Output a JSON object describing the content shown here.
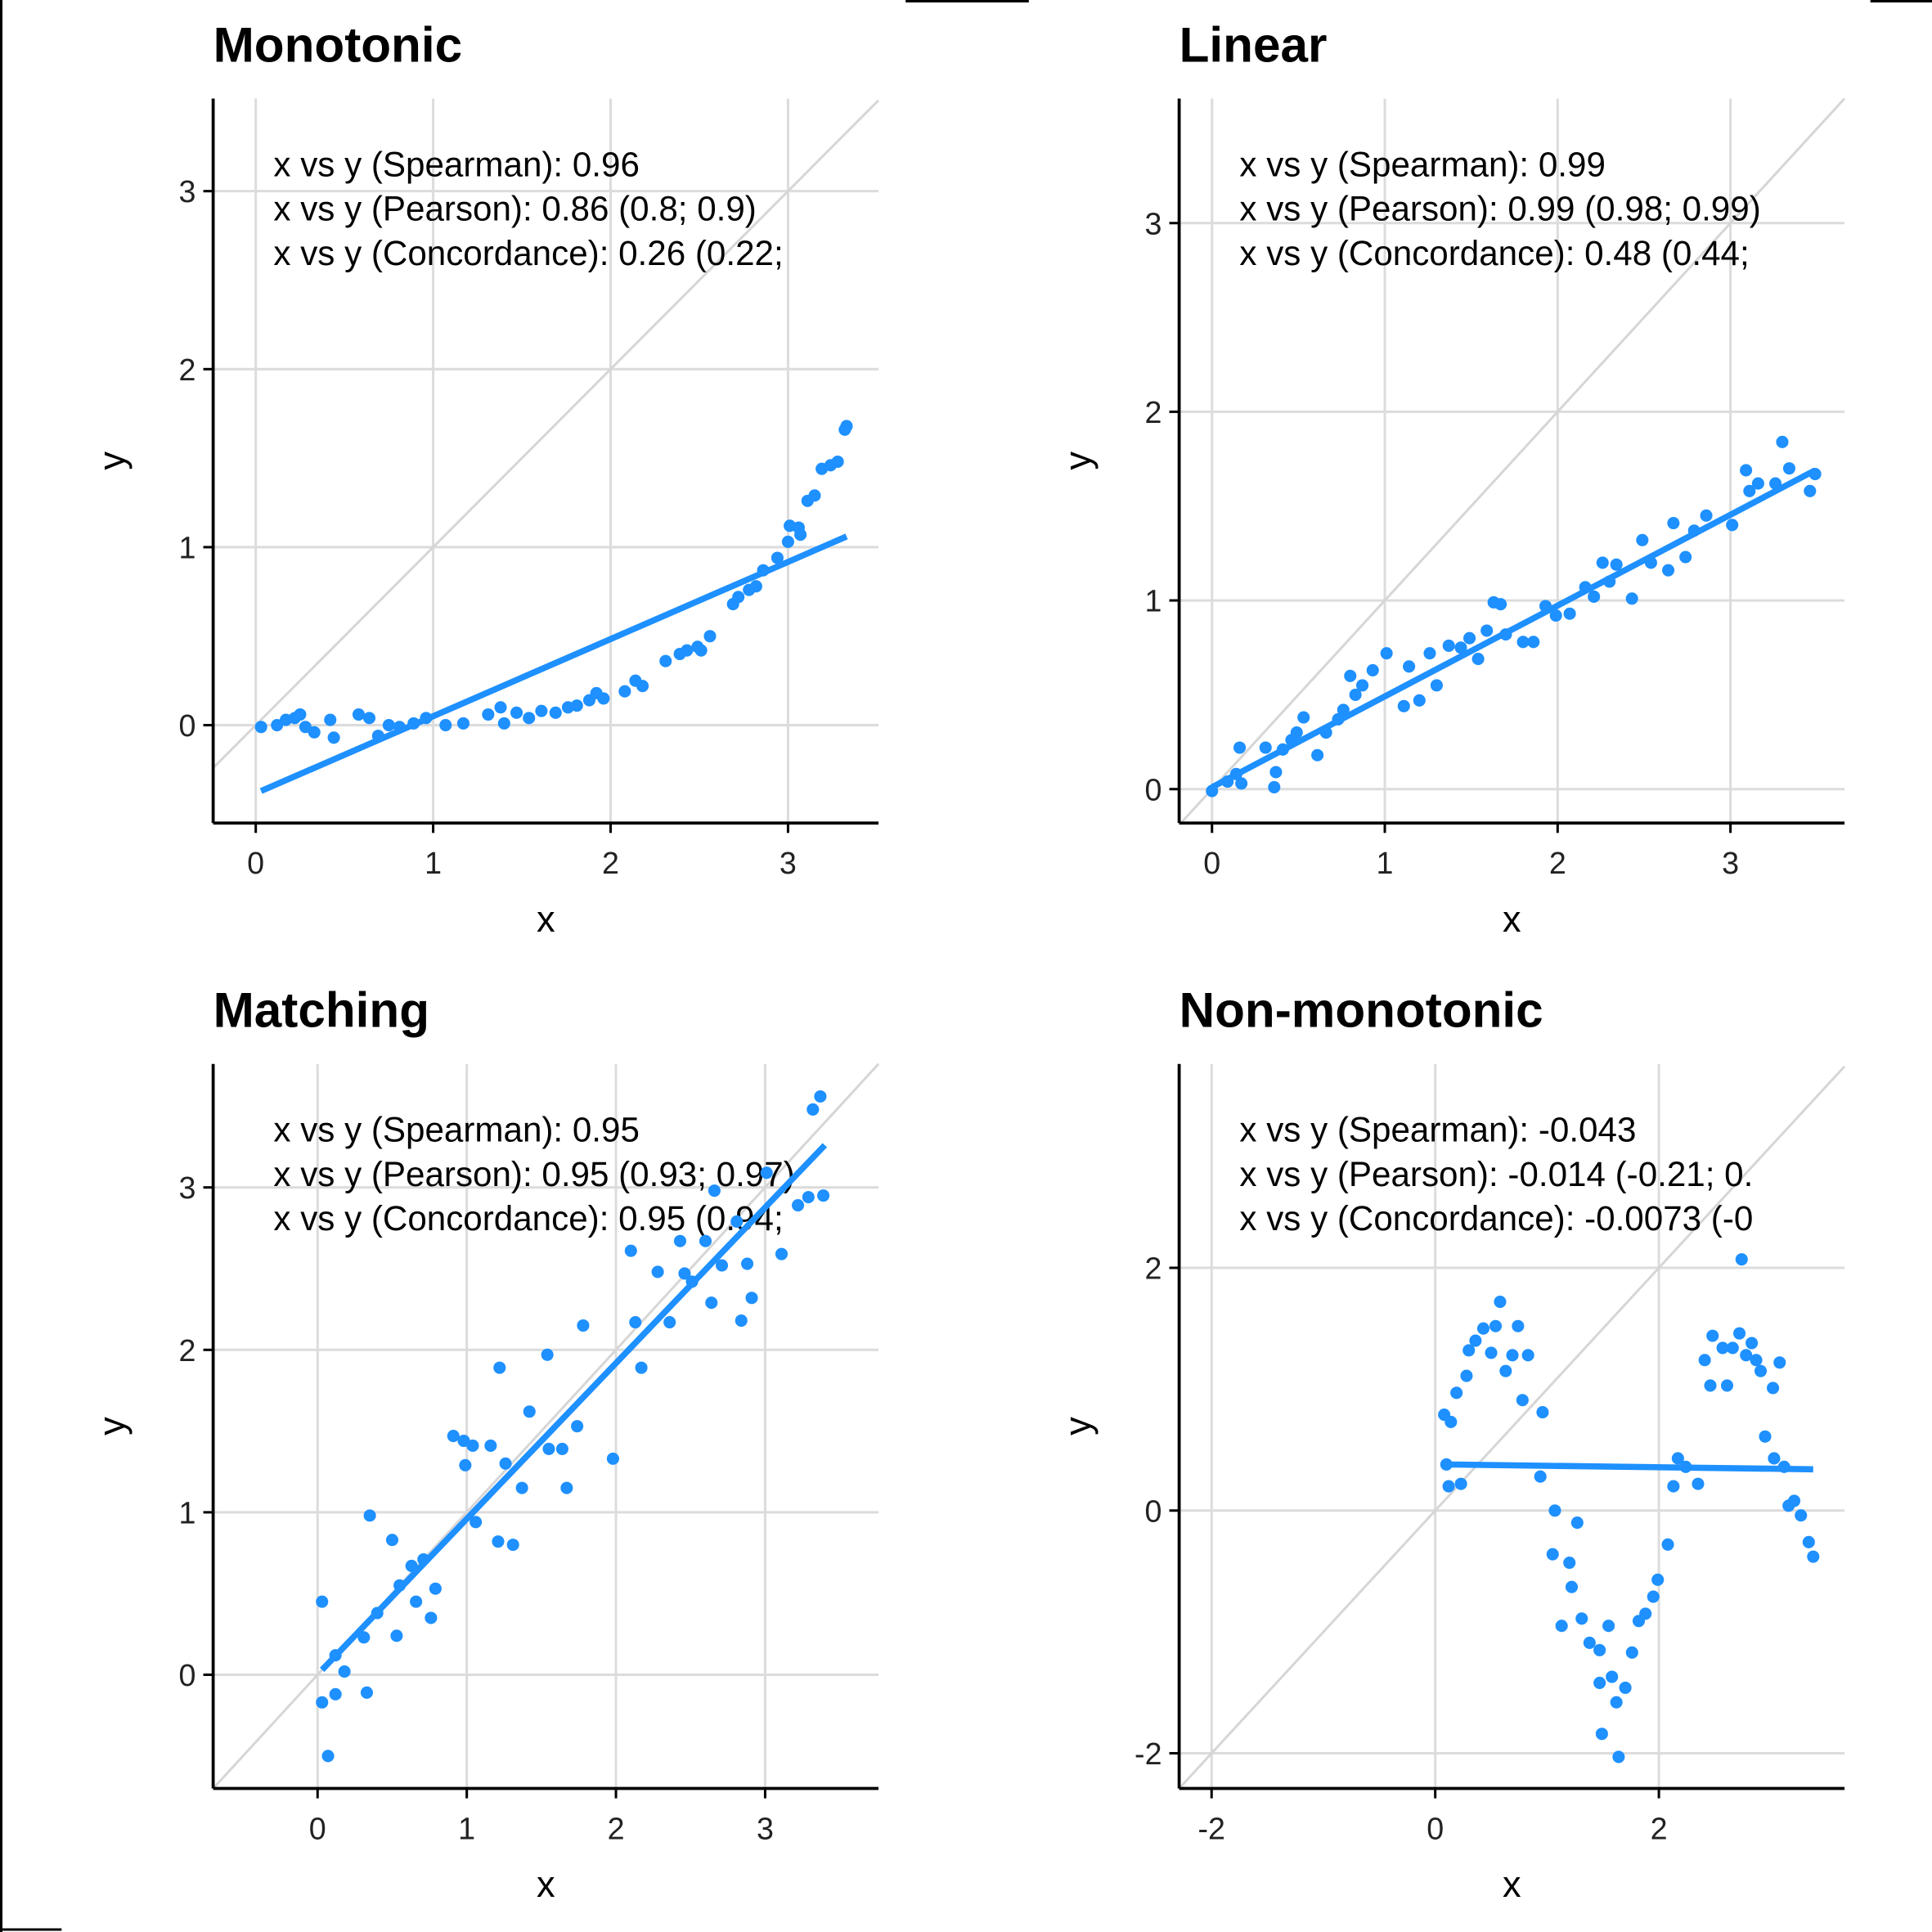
{
  "chart_data": [
    {
      "type": "scatter",
      "title": "Monotonic",
      "xlabel": "x",
      "ylabel": "y",
      "color": "#1e90ff",
      "grid": true,
      "identity_line": true,
      "annotations": [
        "x vs y (Spearman): 0.96",
        "x vs y (Pearson): 0.86 (0.8; 0.9)",
        "x vs y (Concordance): 0.26 (0.22;"
      ],
      "xlim": [
        -0.24,
        3.51
      ],
      "ylim": [
        -0.55,
        3.52
      ],
      "xticks": [
        0,
        1,
        2,
        3
      ],
      "yticks": [
        0,
        1,
        2,
        3
      ],
      "x": [
        0.03,
        0.12,
        0.17,
        0.22,
        0.25,
        0.28,
        0.33,
        0.42,
        0.44,
        0.58,
        0.64,
        0.69,
        0.75,
        0.81,
        0.89,
        0.96,
        1.07,
        1.17,
        1.31,
        1.38,
        1.4,
        1.47,
        1.54,
        1.61,
        1.69,
        1.76,
        1.81,
        1.88,
        1.92,
        1.96,
        2.08,
        2.14,
        2.18,
        2.31,
        2.39,
        2.43,
        2.49,
        2.51,
        2.56,
        2.69,
        2.72,
        2.78,
        2.82,
        2.86,
        2.94,
        3.0,
        3.01,
        3.06,
        3.07,
        3.11,
        3.15,
        3.19,
        3.24,
        3.28,
        3.32,
        3.33
      ],
      "y": [
        -0.01,
        0,
        0.03,
        0.04,
        0.06,
        -0.01,
        -0.04,
        0.03,
        -0.07,
        0.06,
        0.04,
        -0.06,
        0,
        -0.01,
        0.01,
        0.04,
        0,
        0.01,
        0.06,
        0.1,
        0.01,
        0.07,
        0.04,
        0.08,
        0.07,
        0.1,
        0.11,
        0.14,
        0.18,
        0.15,
        0.19,
        0.25,
        0.22,
        0.36,
        0.4,
        0.42,
        0.44,
        0.42,
        0.5,
        0.68,
        0.72,
        0.76,
        0.78,
        0.87,
        0.94,
        1.03,
        1.12,
        1.11,
        1.07,
        1.26,
        1.29,
        1.44,
        1.46,
        1.48,
        1.66,
        1.68
      ],
      "fit": {
        "x": [
          0.03,
          3.33
        ],
        "y": [
          -0.37,
          1.06
        ]
      }
    },
    {
      "type": "scatter",
      "title": "Linear",
      "xlabel": "x",
      "ylabel": "y",
      "color": "#1e90ff",
      "grid": true,
      "identity_line": true,
      "annotations": [
        "x vs y (Spearman): 0.99",
        "x vs y (Pearson): 0.99 (0.98; 0.99)",
        "x vs y (Concordance): 0.48 (0.44;"
      ],
      "xlim": [
        -0.19,
        3.66
      ],
      "ylim": [
        -0.18,
        3.66
      ],
      "xticks": [
        0,
        1,
        2,
        3
      ],
      "yticks": [
        0,
        1,
        2,
        3
      ],
      "x": [
        0,
        0.09,
        0.14,
        0.16,
        0.17,
        0.31,
        0.36,
        0.37,
        0.41,
        0.46,
        0.49,
        0.53,
        0.61,
        0.66,
        0.73,
        0.76,
        0.8,
        0.83,
        0.87,
        0.93,
        1.01,
        1.11,
        1.14,
        1.2,
        1.26,
        1.3,
        1.37,
        1.44,
        1.49,
        1.54,
        1.59,
        1.63,
        1.67,
        1.7,
        1.8,
        1.86,
        1.93,
        1.99,
        2.07,
        2.16,
        2.21,
        2.26,
        2.3,
        2.34,
        2.43,
        2.49,
        2.54,
        2.64,
        2.67,
        2.74,
        2.79,
        2.86,
        3.01,
        3.09,
        3.11,
        3.16,
        3.26,
        3.3,
        3.34,
        3.46,
        3.49
      ],
      "y": [
        -0.01,
        0.04,
        0.08,
        0.22,
        0.03,
        0.22,
        0.01,
        0.09,
        0.21,
        0.26,
        0.3,
        0.38,
        0.18,
        0.3,
        0.37,
        0.42,
        0.6,
        0.5,
        0.55,
        0.63,
        0.72,
        0.44,
        0.65,
        0.47,
        0.72,
        0.55,
        0.76,
        0.75,
        0.8,
        0.69,
        0.84,
        0.99,
        0.98,
        0.82,
        0.78,
        0.78,
        0.97,
        0.92,
        0.93,
        1.07,
        1.02,
        1.2,
        1.1,
        1.19,
        1.01,
        1.32,
        1.2,
        1.16,
        1.41,
        1.23,
        1.37,
        1.45,
        1.4,
        1.69,
        1.58,
        1.62,
        1.62,
        1.84,
        1.7,
        1.58,
        1.67
      ],
      "fit": {
        "x": [
          0,
          3.49
        ],
        "y": [
          0.01,
          1.69
        ]
      }
    },
    {
      "type": "scatter",
      "title": "Matching",
      "xlabel": "x",
      "ylabel": "y",
      "color": "#1e90ff",
      "grid": true,
      "identity_line": true,
      "annotations": [
        "x vs y (Spearman): 0.95",
        "x vs y (Pearson): 0.95 (0.93; 0.97)",
        "x vs y (Concordance): 0.95 (0.94;"
      ],
      "xlim": [
        -0.7,
        3.76
      ],
      "ylim": [
        -0.7,
        3.76
      ],
      "xticks": [
        0,
        1,
        2,
        3
      ],
      "yticks": [
        0,
        1,
        2,
        3
      ],
      "x": [
        0.03,
        0.03,
        0.07,
        0.12,
        0.12,
        0.18,
        0.31,
        0.33,
        0.35,
        0.4,
        0.5,
        0.53,
        0.55,
        0.63,
        0.66,
        0.71,
        0.76,
        0.79,
        0.91,
        0.98,
        0.99,
        1.04,
        1.06,
        1.16,
        1.21,
        1.22,
        1.26,
        1.31,
        1.37,
        1.42,
        1.54,
        1.55,
        1.64,
        1.67,
        1.74,
        1.78,
        1.98,
        2.1,
        2.13,
        2.17,
        2.28,
        2.36,
        2.43,
        2.46,
        2.51,
        2.6,
        2.64,
        2.66,
        2.71,
        2.81,
        2.84,
        2.88,
        2.91,
        3.01,
        3.11,
        3.22,
        3.29,
        3.32,
        3.37,
        3.39
      ],
      "y": [
        0.45,
        -0.17,
        -0.5,
        -0.12,
        0.12,
        0.02,
        0.23,
        -0.11,
        0.98,
        0.38,
        0.83,
        0.24,
        0.55,
        0.67,
        0.45,
        0.71,
        0.35,
        0.53,
        1.47,
        1.44,
        1.29,
        1.41,
        0.94,
        1.41,
        0.82,
        1.89,
        1.3,
        0.8,
        1.15,
        1.62,
        1.97,
        1.39,
        1.39,
        1.15,
        1.53,
        2.15,
        1.33,
        2.61,
        2.17,
        1.89,
        2.48,
        2.17,
        2.67,
        2.47,
        2.42,
        2.67,
        2.29,
        2.98,
        2.52,
        2.79,
        2.18,
        2.53,
        2.32,
        3.09,
        2.59,
        2.89,
        2.94,
        3.48,
        3.56,
        2.95
      ],
      "fit": {
        "x": [
          0.03,
          3.4
        ],
        "y": [
          0.03,
          3.26
        ]
      }
    },
    {
      "type": "scatter",
      "title": "Non-monotonic",
      "xlabel": "x",
      "ylabel": "y",
      "color": "#1e90ff",
      "grid": true,
      "identity_line": true,
      "annotations": [
        "x vs y (Spearman): -0.043",
        "x vs y (Pearson): -0.014 (-0.21; 0.",
        "x vs y (Concordance): -0.0073 (-0"
      ],
      "xlim": [
        -2.29,
        3.66
      ],
      "ylim": [
        -2.29,
        3.68
      ],
      "xticks": [
        -2,
        0,
        2
      ],
      "yticks": [
        -2,
        0,
        2
      ],
      "x": [
        0.08,
        0.1,
        0.14,
        0.12,
        0.19,
        0.23,
        0.28,
        0.3,
        0.36,
        0.43,
        0.5,
        0.54,
        0.58,
        0.63,
        0.69,
        0.74,
        0.78,
        0.83,
        0.96,
        0.94,
        1.07,
        1.05,
        1.13,
        1.2,
        1.22,
        1.27,
        1.31,
        1.38,
        1.47,
        1.47,
        1.49,
        1.55,
        1.58,
        1.62,
        1.64,
        1.7,
        1.76,
        1.82,
        1.88,
        1.95,
        1.99,
        2.08,
        2.13,
        2.17,
        2.24,
        2.35,
        2.41,
        2.46,
        2.48,
        2.57,
        2.61,
        2.66,
        2.72,
        2.74,
        2.78,
        2.83,
        2.87,
        2.91,
        2.95,
        3.02,
        3.08,
        3.03,
        3.12,
        3.16,
        3.21,
        3.27,
        3.34,
        3.38
      ],
      "y": [
        0.79,
        0.38,
        0.73,
        0.2,
        0.97,
        0.22,
        1.11,
        1.32,
        1.4,
        1.5,
        1.3,
        1.52,
        1.72,
        1.15,
        1.28,
        1.52,
        0.91,
        1.28,
        0.81,
        0.28,
        0,
        -0.36,
        -0.95,
        -0.43,
        -0.63,
        -0.1,
        -0.89,
        -1.09,
        -1.15,
        -1.42,
        -1.84,
        -0.95,
        -1.37,
        -1.58,
        -2.03,
        -1.46,
        -1.17,
        -0.91,
        -0.85,
        -0.71,
        -0.57,
        -0.28,
        0.2,
        0.43,
        0.36,
        0.22,
        1.24,
        1.03,
        1.44,
        1.34,
        1.03,
        1.34,
        1.46,
        2.07,
        1.28,
        1.38,
        1.24,
        1.15,
        0.61,
        1.01,
        1.22,
        0.43,
        0.36,
        0.04,
        0.08,
        -0.04,
        -0.26,
        -0.38
      ],
      "fit": {
        "x": [
          0.08,
          3.38
        ],
        "y": [
          0.38,
          0.34
        ]
      }
    }
  ]
}
